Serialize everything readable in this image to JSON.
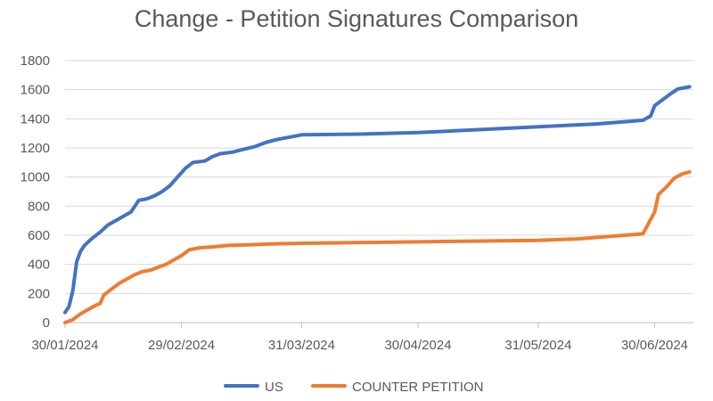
{
  "chart_data": {
    "type": "line",
    "title": "Change - Petition Signatures Comparison",
    "xlabel": "",
    "ylabel": "",
    "x_tick_labels": [
      "30/01/2024",
      "29/02/2024",
      "31/03/2024",
      "30/04/2024",
      "31/05/2024",
      "30/06/2024"
    ],
    "x_ticks": [
      "2024-01-30",
      "2024-02-29",
      "2024-03-31",
      "2024-04-30",
      "2024-05-31",
      "2024-06-30"
    ],
    "xlim": [
      "2024-01-30",
      "2024-07-10"
    ],
    "ylim": [
      0,
      1800
    ],
    "y_ticks": [
      0,
      200,
      400,
      600,
      800,
      1000,
      1200,
      1400,
      1600,
      1800
    ],
    "grid": true,
    "legend_position": "bottom",
    "series": [
      {
        "name": "US",
        "color": "#4472c4",
        "points": [
          [
            "2024-01-30",
            70
          ],
          [
            "2024-01-31",
            110
          ],
          [
            "2024-02-01",
            220
          ],
          [
            "2024-02-02",
            420
          ],
          [
            "2024-02-03",
            490
          ],
          [
            "2024-02-04",
            530
          ],
          [
            "2024-02-06",
            580
          ],
          [
            "2024-02-08",
            620
          ],
          [
            "2024-02-10",
            670
          ],
          [
            "2024-02-12",
            700
          ],
          [
            "2024-02-14",
            730
          ],
          [
            "2024-02-16",
            760
          ],
          [
            "2024-02-18",
            840
          ],
          [
            "2024-02-20",
            850
          ],
          [
            "2024-02-22",
            870
          ],
          [
            "2024-02-24",
            900
          ],
          [
            "2024-02-26",
            940
          ],
          [
            "2024-02-28",
            1000
          ],
          [
            "2024-03-01",
            1060
          ],
          [
            "2024-03-03",
            1100
          ],
          [
            "2024-03-06",
            1110
          ],
          [
            "2024-03-08",
            1140
          ],
          [
            "2024-03-10",
            1160
          ],
          [
            "2024-03-13",
            1170
          ],
          [
            "2024-03-16",
            1190
          ],
          [
            "2024-03-19",
            1210
          ],
          [
            "2024-03-22",
            1240
          ],
          [
            "2024-03-25",
            1260
          ],
          [
            "2024-03-28",
            1275
          ],
          [
            "2024-03-31",
            1290
          ],
          [
            "2024-04-15",
            1295
          ],
          [
            "2024-04-30",
            1305
          ],
          [
            "2024-05-15",
            1325
          ],
          [
            "2024-05-31",
            1345
          ],
          [
            "2024-06-15",
            1365
          ],
          [
            "2024-06-27",
            1390
          ],
          [
            "2024-06-29",
            1420
          ],
          [
            "2024-06-30",
            1490
          ],
          [
            "2024-07-02",
            1530
          ],
          [
            "2024-07-04",
            1570
          ],
          [
            "2024-07-06",
            1605
          ],
          [
            "2024-07-09",
            1620
          ]
        ]
      },
      {
        "name": "COUNTER PETITION",
        "color": "#ed7d31",
        "points": [
          [
            "2024-01-30",
            0
          ],
          [
            "2024-02-01",
            20
          ],
          [
            "2024-02-03",
            60
          ],
          [
            "2024-02-05",
            90
          ],
          [
            "2024-02-07",
            120
          ],
          [
            "2024-02-08",
            130
          ],
          [
            "2024-02-09",
            190
          ],
          [
            "2024-02-11",
            230
          ],
          [
            "2024-02-13",
            270
          ],
          [
            "2024-02-15",
            300
          ],
          [
            "2024-02-17",
            330
          ],
          [
            "2024-02-19",
            350
          ],
          [
            "2024-02-21",
            360
          ],
          [
            "2024-02-23",
            380
          ],
          [
            "2024-02-25",
            400
          ],
          [
            "2024-02-27",
            430
          ],
          [
            "2024-02-29",
            460
          ],
          [
            "2024-03-02",
            500
          ],
          [
            "2024-03-05",
            515
          ],
          [
            "2024-03-08",
            520
          ],
          [
            "2024-03-12",
            530
          ],
          [
            "2024-03-18",
            535
          ],
          [
            "2024-03-23",
            540
          ],
          [
            "2024-03-31",
            545
          ],
          [
            "2024-04-30",
            555
          ],
          [
            "2024-05-31",
            565
          ],
          [
            "2024-06-10",
            575
          ],
          [
            "2024-06-20",
            595
          ],
          [
            "2024-06-27",
            610
          ],
          [
            "2024-06-30",
            760
          ],
          [
            "2024-07-01",
            880
          ],
          [
            "2024-07-03",
            930
          ],
          [
            "2024-07-05",
            990
          ],
          [
            "2024-07-07",
            1020
          ],
          [
            "2024-07-09",
            1035
          ]
        ]
      }
    ]
  }
}
